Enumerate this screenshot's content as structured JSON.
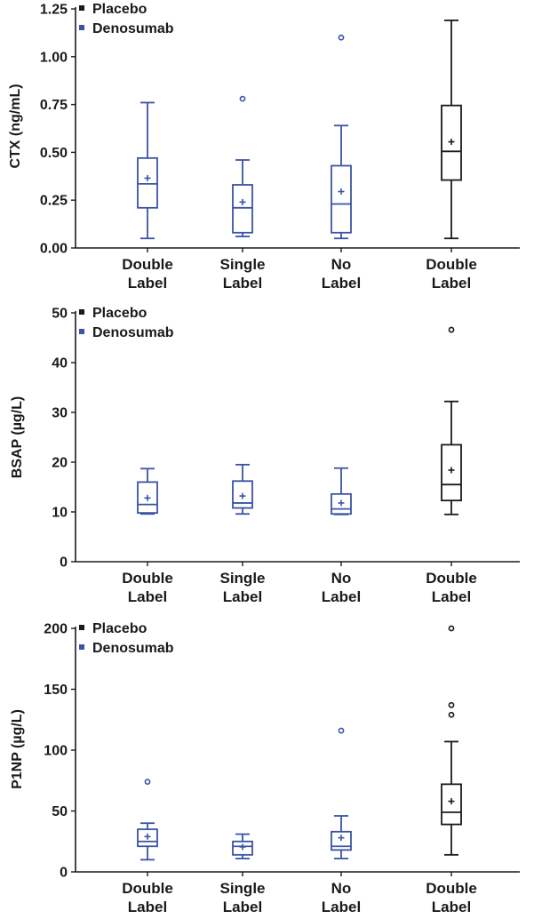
{
  "colors": {
    "placebo": "#1a1a1a",
    "denosumab": "#3a54a4",
    "axis": "#1a1a1a"
  },
  "legend": [
    {
      "name": "Placebo",
      "color_key": "placebo"
    },
    {
      "name": "Denosumab",
      "color_key": "denosumab"
    }
  ],
  "chart_data": [
    {
      "type": "box",
      "ylabel": "CTX (ng/mL)",
      "ylim": [
        0,
        1.25
      ],
      "yticks": [
        0.0,
        0.25,
        0.5,
        0.75,
        1.0,
        1.25
      ],
      "ytick_labels": [
        "0.00",
        "0.25",
        "0.50",
        "0.75",
        "1.00",
        "1.25"
      ],
      "categories": [
        {
          "line1": "Double",
          "line2": "Label",
          "series": "Denosumab",
          "min": 0.05,
          "q1": 0.21,
          "median": 0.335,
          "q3": 0.47,
          "max": 0.76,
          "mean": 0.365,
          "outliers": []
        },
        {
          "line1": "Single",
          "line2": "Label",
          "series": "Denosumab",
          "min": 0.06,
          "q1": 0.08,
          "median": 0.21,
          "q3": 0.33,
          "max": 0.46,
          "mean": 0.24,
          "outliers": [
            0.78
          ]
        },
        {
          "line1": "No",
          "line2": "Label",
          "series": "Denosumab",
          "min": 0.05,
          "q1": 0.08,
          "median": 0.23,
          "q3": 0.43,
          "max": 0.64,
          "mean": 0.295,
          "outliers": [
            1.1
          ]
        },
        {
          "line1": "Double",
          "line2": "Label",
          "series": "Placebo",
          "min": 0.05,
          "q1": 0.355,
          "median": 0.505,
          "q3": 0.745,
          "max": 1.19,
          "mean": 0.555,
          "outliers": []
        }
      ]
    },
    {
      "type": "box",
      "ylabel": "BSAP (µg/L)",
      "ylim": [
        0,
        50
      ],
      "yticks": [
        0,
        10,
        20,
        30,
        40,
        50
      ],
      "ytick_labels": [
        "0",
        "10",
        "20",
        "30",
        "40",
        "50"
      ],
      "categories": [
        {
          "line1": "Double",
          "line2": "Label",
          "series": "Denosumab",
          "min": 9.6,
          "q1": 9.8,
          "median": 11.5,
          "q3": 16.0,
          "max": 18.7,
          "mean": 12.8,
          "outliers": []
        },
        {
          "line1": "Single",
          "line2": "Label",
          "series": "Denosumab",
          "min": 9.6,
          "q1": 10.8,
          "median": 11.8,
          "q3": 16.2,
          "max": 19.5,
          "mean": 13.2,
          "outliers": []
        },
        {
          "line1": "No",
          "line2": "Label",
          "series": "Denosumab",
          "min": 9.5,
          "q1": 9.6,
          "median": 10.6,
          "q3": 13.6,
          "max": 18.8,
          "mean": 11.8,
          "outliers": []
        },
        {
          "line1": "Double",
          "line2": "Label",
          "series": "Placebo",
          "min": 9.5,
          "q1": 12.3,
          "median": 15.5,
          "q3": 23.5,
          "max": 32.2,
          "mean": 18.4,
          "outliers": [
            46.6
          ]
        }
      ]
    },
    {
      "type": "box",
      "ylabel": "P1NP (µg/L)",
      "ylim": [
        0,
        200
      ],
      "yticks": [
        0,
        50,
        100,
        150,
        200
      ],
      "ytick_labels": [
        "0",
        "50",
        "100",
        "150",
        "200"
      ],
      "categories": [
        {
          "line1": "Double",
          "line2": "Label",
          "series": "Denosumab",
          "min": 10,
          "q1": 21,
          "median": 25,
          "q3": 35,
          "max": 40,
          "mean": 29,
          "outliers": [
            74
          ]
        },
        {
          "line1": "Single",
          "line2": "Label",
          "series": "Denosumab",
          "min": 11,
          "q1": 14,
          "median": 21,
          "q3": 25,
          "max": 31,
          "mean": 20.5,
          "outliers": []
        },
        {
          "line1": "No",
          "line2": "Label",
          "series": "Denosumab",
          "min": 11,
          "q1": 18,
          "median": 21,
          "q3": 33,
          "max": 46,
          "mean": 28,
          "outliers": [
            116
          ]
        },
        {
          "line1": "Double",
          "line2": "Label",
          "series": "Placebo",
          "min": 14,
          "q1": 39,
          "median": 49,
          "q3": 72,
          "max": 107,
          "mean": 58,
          "outliers": [
            129,
            137,
            200
          ]
        }
      ]
    }
  ]
}
